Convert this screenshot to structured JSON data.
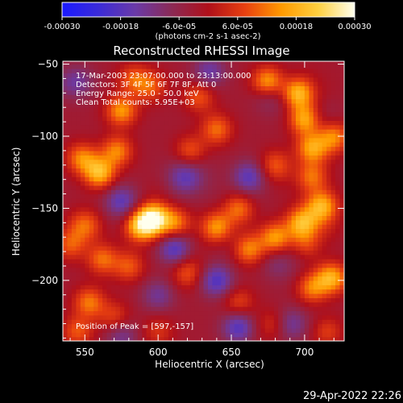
{
  "colorbar": {
    "ticks": [
      {
        "value": -0.0003,
        "label": "-0.00030"
      },
      {
        "value": -0.00018,
        "label": "-0.00018"
      },
      {
        "value": -6e-05,
        "label": "-6.0e-05"
      },
      {
        "value": 6e-05,
        "label": "6.0e-05"
      },
      {
        "value": 0.00018,
        "label": "0.00018"
      },
      {
        "value": 0.0003,
        "label": "0.00030"
      }
    ],
    "range": [
      -0.0003,
      0.0003
    ],
    "unit_label": "(photons cm-2 s-1 asec-2)",
    "colors": [
      "#1a1aff",
      "#3b2bd8",
      "#6a3aa8",
      "#8b2a55",
      "#b0101a",
      "#e84010",
      "#ff9a00",
      "#ffd040",
      "#ffffee"
    ]
  },
  "chart_data": {
    "type": "heatmap",
    "title": "Reconstructed RHESSI Image",
    "xlabel": "Heliocentric X (arcsec)",
    "ylabel": "Heliocentric Y (arcsec)",
    "xlim": [
      535,
      727
    ],
    "ylim": [
      -242,
      -48
    ],
    "x_ticks": [
      550,
      600,
      650,
      700
    ],
    "y_ticks": [
      -50,
      -100,
      -150,
      -200
    ],
    "info_lines": [
      "17-Mar-2003 23:07:00.000 to 23:13:00.000",
      "Detectors: 3F 4F 5F 6F 7F 8F, Att 0",
      "Energy Range: 25.0 - 50.0 keV",
      "Clean     Total counts: 5.95E+03"
    ],
    "peak_label": "Position of Peak = [597,-157]",
    "peak": [
      597,
      -157
    ],
    "sources": [
      {
        "x": 597,
        "y": -157,
        "amp": 0.0003
      },
      {
        "x": 588,
        "y": -162,
        "amp": 0.00022
      },
      {
        "x": 560,
        "y": -125,
        "amp": 0.00022
      },
      {
        "x": 548,
        "y": -115,
        "amp": 0.00016
      },
      {
        "x": 572,
        "y": -110,
        "amp": 0.00016
      },
      {
        "x": 550,
        "y": -162,
        "amp": 0.00018
      },
      {
        "x": 540,
        "y": -175,
        "amp": 0.00012
      },
      {
        "x": 562,
        "y": -185,
        "amp": 0.00014
      },
      {
        "x": 580,
        "y": -190,
        "amp": 0.00012
      },
      {
        "x": 553,
        "y": -215,
        "amp": 0.00015
      },
      {
        "x": 570,
        "y": -225,
        "amp": 0.0001
      },
      {
        "x": 545,
        "y": -235,
        "amp": 0.00012
      },
      {
        "x": 575,
        "y": -82,
        "amp": 0.00018
      },
      {
        "x": 595,
        "y": -65,
        "amp": 0.00012
      },
      {
        "x": 583,
        "y": -60,
        "amp": 0.00012
      },
      {
        "x": 628,
        "y": -72,
        "amp": 0.00012
      },
      {
        "x": 640,
        "y": -95,
        "amp": 0.00014
      },
      {
        "x": 622,
        "y": -110,
        "amp": 0.00012
      },
      {
        "x": 612,
        "y": -160,
        "amp": 0.00015
      },
      {
        "x": 620,
        "y": -195,
        "amp": 0.0001
      },
      {
        "x": 640,
        "y": -163,
        "amp": 0.00018
      },
      {
        "x": 655,
        "y": -150,
        "amp": 0.00014
      },
      {
        "x": 662,
        "y": -178,
        "amp": 0.00016
      },
      {
        "x": 655,
        "y": -215,
        "amp": 0.0001
      },
      {
        "x": 680,
        "y": -170,
        "amp": 0.00018
      },
      {
        "x": 698,
        "y": -160,
        "amp": 0.0002
      },
      {
        "x": 712,
        "y": -148,
        "amp": 0.00018
      },
      {
        "x": 718,
        "y": -198,
        "amp": 0.0002
      },
      {
        "x": 705,
        "y": -205,
        "amp": 0.00015
      },
      {
        "x": 700,
        "y": -175,
        "amp": 0.00012
      },
      {
        "x": 675,
        "y": -62,
        "amp": 0.0002
      },
      {
        "x": 695,
        "y": -70,
        "amp": 0.00022
      },
      {
        "x": 700,
        "y": -88,
        "amp": 0.0002
      },
      {
        "x": 705,
        "y": -108,
        "amp": 0.00018
      },
      {
        "x": 720,
        "y": -100,
        "amp": 0.00016
      },
      {
        "x": 680,
        "y": -120,
        "amp": 0.00012
      },
      {
        "x": 705,
        "y": -128,
        "amp": 0.00014
      },
      {
        "x": 715,
        "y": -235,
        "amp": 0.0001
      },
      {
        "x": 680,
        "y": -230,
        "amp": 8e-05
      },
      {
        "x": 600,
        "y": -235,
        "amp": 8e-05
      }
    ],
    "negatives": [
      {
        "x": 575,
        "y": -145,
        "amp": 0.00014
      },
      {
        "x": 612,
        "y": -178,
        "amp": 0.00018
      },
      {
        "x": 575,
        "y": -238,
        "amp": 0.0001
      },
      {
        "x": 640,
        "y": -200,
        "amp": 0.00016
      },
      {
        "x": 662,
        "y": -128,
        "amp": 0.00014
      },
      {
        "x": 655,
        "y": -232,
        "amp": 0.00016
      },
      {
        "x": 618,
        "y": -128,
        "amp": 0.0001
      },
      {
        "x": 545,
        "y": -62,
        "amp": 0.0001
      },
      {
        "x": 690,
        "y": -230,
        "amp": 0.00012
      },
      {
        "x": 635,
        "y": -55,
        "amp": 0.00012
      },
      {
        "x": 600,
        "y": -210,
        "amp": 0.0001
      }
    ]
  },
  "footer": {
    "timestamp": "29-Apr-2022 22:26"
  }
}
